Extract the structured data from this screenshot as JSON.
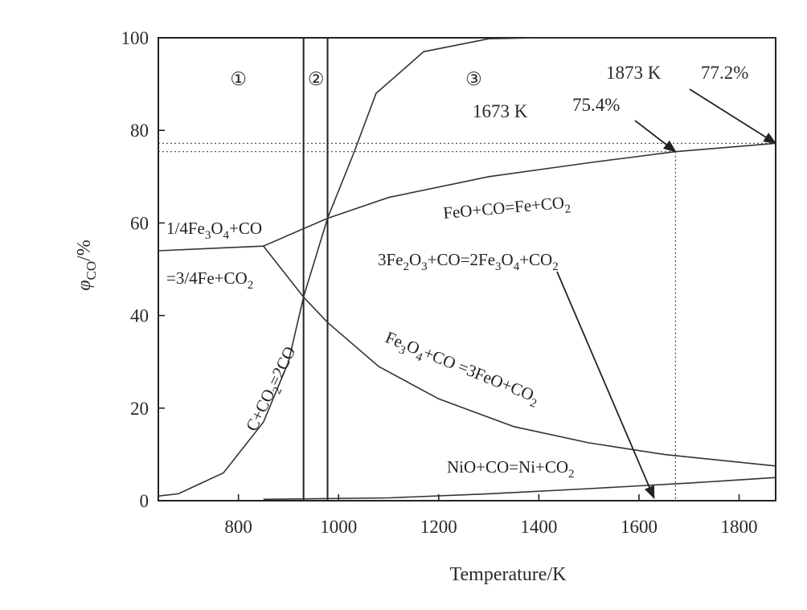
{
  "chart_data": {
    "type": "line",
    "title": "",
    "xlabel": "Temperature/K",
    "ylabel_main": "φ",
    "ylabel_sub": "CO",
    "ylabel_unit": "/%",
    "xlim": [
      640,
      1873
    ],
    "ylim": [
      0,
      100
    ],
    "xticks": [
      800,
      1000,
      1200,
      1400,
      1600,
      1800
    ],
    "yticks": [
      0,
      20,
      40,
      60,
      80,
      100
    ],
    "grid": false,
    "legend": "none",
    "regions": [
      {
        "label": "①",
        "x": 800
      },
      {
        "label": "②",
        "x": 955
      },
      {
        "label": "③",
        "x": 1270
      }
    ],
    "region_boundaries": [
      930,
      978
    ],
    "series": [
      {
        "id": "boudouard",
        "x": [
          640,
          680,
          770,
          850,
          900,
          930,
          978,
          1030,
          1075,
          1170,
          1300,
          1400,
          1873
        ],
        "y": [
          1,
          1.5,
          6,
          17,
          30,
          44,
          61,
          75,
          88,
          97,
          99.8,
          100,
          100
        ]
      },
      {
        "id": "fe3o4-to-fe",
        "x": [
          640,
          850
        ],
        "y": [
          54,
          55
        ]
      },
      {
        "id": "feo-to-fe",
        "x": [
          850,
          978,
          1100,
          1300,
          1500,
          1673,
          1873
        ],
        "y": [
          55,
          61,
          65.5,
          70,
          73,
          75.4,
          77.2
        ]
      },
      {
        "id": "fe3o4-to-feo",
        "x": [
          850,
          930,
          978,
          1080,
          1200,
          1350,
          1500,
          1650,
          1873
        ],
        "y": [
          55,
          44,
          38.5,
          29,
          22,
          16,
          12.5,
          10,
          7.5
        ]
      },
      {
        "id": "nio-to-ni",
        "x": [
          850,
          1100,
          1300,
          1500,
          1700,
          1873
        ],
        "y": [
          0.3,
          0.6,
          1.5,
          2.6,
          3.8,
          5
        ]
      }
    ],
    "reference_lines": [
      {
        "y": 77.2,
        "x_end": 1873
      },
      {
        "y": 75.4,
        "x_end": 1673
      },
      {
        "x": 1673,
        "y_end": 75.4
      }
    ],
    "annotations": [
      {
        "id": "ann-1873",
        "text": "1873 K  77.2%",
        "target": [
          1873,
          77.2
        ]
      },
      {
        "id": "ann-1673",
        "text": "1673 K  75.4%",
        "target": [
          1673,
          75.4
        ]
      },
      {
        "id": "ann-fe2o3",
        "text": "3Fe2O3+CO=2Fe3O4+CO2",
        "target": [
          1630,
          0.6
        ]
      }
    ],
    "curve_labels": {
      "fe3o4_fe_line1": "1/4Fe3O4+CO",
      "fe3o4_fe_line2": "=3/4Fe+CO2",
      "feo_fe": "FeO+CO=Fe+CO2",
      "fe2o3": "3Fe2O3+CO=2Fe3O4+CO2",
      "fe3o4_feo": "Fe3O4+CO =3FeO+CO2",
      "boudouard": "C+CO2=2CO",
      "nio": "NiO+CO=Ni+CO2",
      "ann_1873_temp": "1873 K",
      "ann_1873_val": "77.2%",
      "ann_1673_temp": "1673 K",
      "ann_1673_val": "75.4%"
    }
  }
}
